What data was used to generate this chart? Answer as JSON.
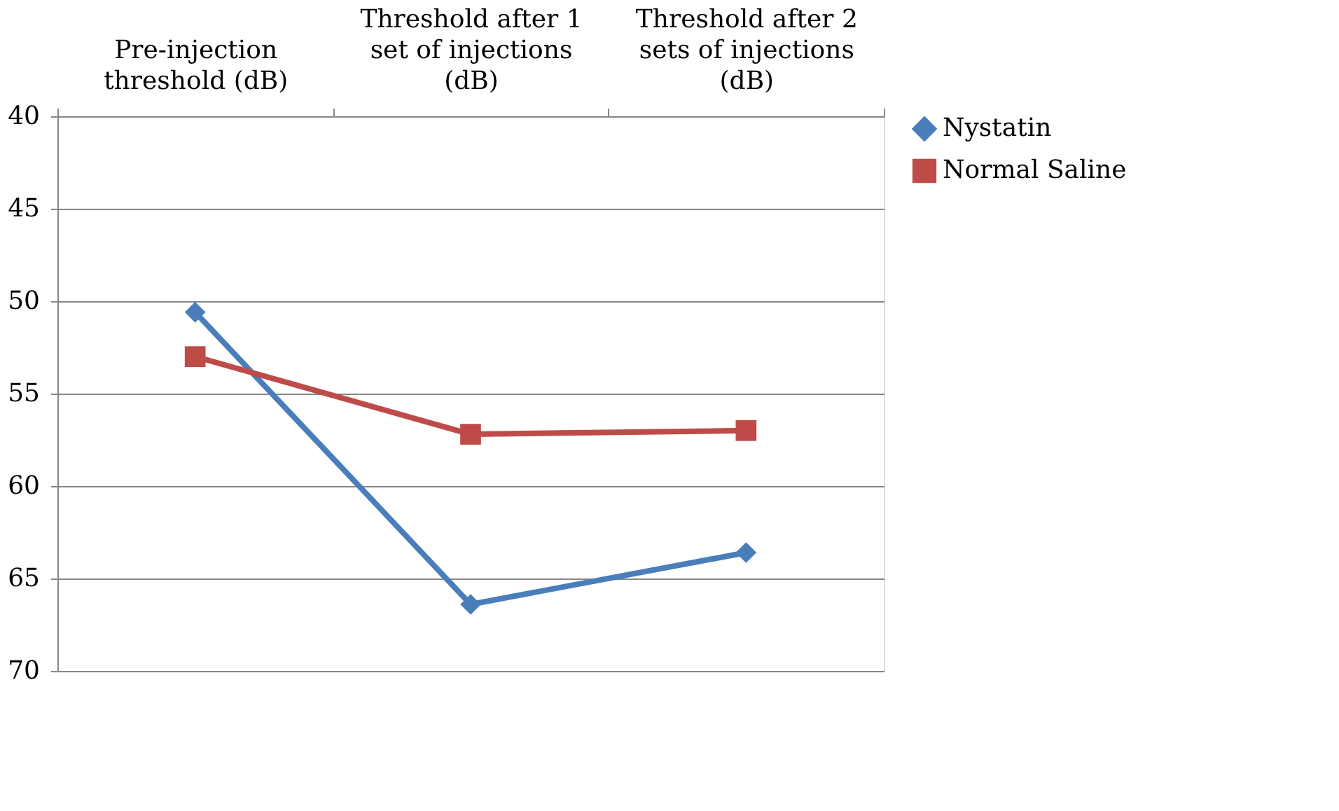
{
  "chart_data": {
    "type": "line",
    "categories": [
      "Pre-injection threshold (dB)",
      "Threshold after 1 set of injections (dB)",
      "Threshold after 2 sets of injections (dB)"
    ],
    "series": [
      {
        "name": "Nystatin",
        "color": "#4a7ebb",
        "marker": "diamond",
        "values": [
          50.6,
          66.4,
          63.6
        ]
      },
      {
        "name": "Normal Saline",
        "color": "#be4b48",
        "marker": "square",
        "values": [
          53.0,
          57.2,
          57.0
        ]
      }
    ],
    "ylim": [
      70,
      40
    ],
    "yticks": [
      40,
      45,
      50,
      55,
      60,
      65,
      70
    ],
    "grid": "y",
    "legend": "right",
    "line_style": "solid"
  }
}
